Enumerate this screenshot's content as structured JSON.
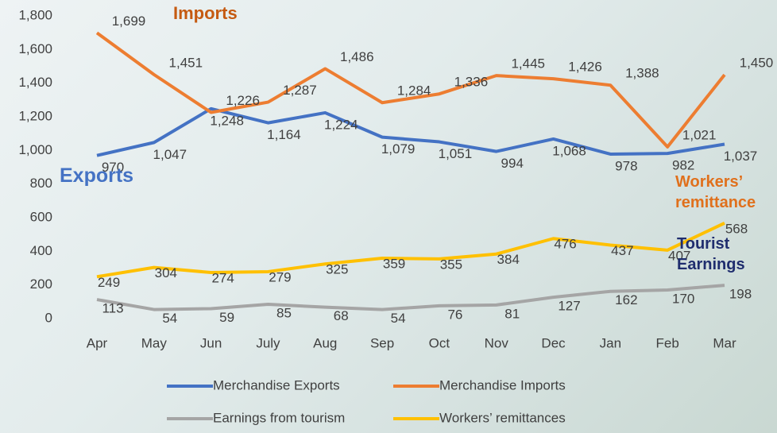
{
  "chart_data": {
    "type": "line",
    "categories": [
      "Apr",
      "May",
      "Jun",
      "July",
      "Aug",
      "Sep",
      "Oct",
      "Nov",
      "Dec",
      "Jan",
      "Feb",
      "Mar"
    ],
    "series": [
      {
        "name": "Merchandise Exports",
        "color": "#4472c4",
        "values": [
          970,
          1047,
          1248,
          1164,
          1224,
          1079,
          1051,
          994,
          1068,
          978,
          982,
          1037
        ],
        "value_labels": [
          "970",
          "1,047",
          "1,248",
          "1,164",
          "1,224",
          "1,079",
          "1,051",
          "994",
          "1,068",
          "978",
          "982",
          "1,037"
        ]
      },
      {
        "name": "Merchandise Imports",
        "color": "#ed7d31",
        "values": [
          1699,
          1451,
          1226,
          1287,
          1486,
          1284,
          1336,
          1445,
          1426,
          1388,
          1021,
          1450
        ],
        "value_labels": [
          "1,699",
          "1,451",
          "1,226",
          "1,287",
          "1,486",
          "1,284",
          "1,336",
          "1,445",
          "1,426",
          "1,388",
          "1,021",
          "1,450"
        ]
      },
      {
        "name": "Earnings from tourism",
        "color": "#a5a5a5",
        "values": [
          113,
          54,
          59,
          85,
          68,
          54,
          76,
          81,
          127,
          162,
          170,
          198
        ],
        "value_labels": [
          "113",
          "54",
          "59",
          "85",
          "68",
          "54",
          "76",
          "81",
          "127",
          "162",
          "170",
          "198"
        ]
      },
      {
        "name": "Workers’ remittances",
        "color": "#ffc000",
        "values": [
          249,
          304,
          274,
          279,
          325,
          359,
          355,
          384,
          476,
          437,
          407,
          568
        ],
        "value_labels": [
          "249",
          "304",
          "274",
          "279",
          "325",
          "359",
          "355",
          "384",
          "476",
          "437",
          "407",
          "568"
        ]
      }
    ],
    "ylim": [
      0,
      1800
    ],
    "yticks": [
      0,
      200,
      400,
      600,
      800,
      {
        "value": 1000,
        "label": "1,000"
      },
      {
        "value": 1200,
        "label": "1,200"
      },
      {
        "value": 1400,
        "label": "1,400"
      },
      {
        "value": 1600,
        "label": "1,600"
      },
      {
        "value": 1800,
        "label": "1,800"
      }
    ],
    "annotations": [
      "Imports",
      "Exports",
      "Workers’ remittance",
      "Tourist Earnings"
    ],
    "grid": false
  }
}
